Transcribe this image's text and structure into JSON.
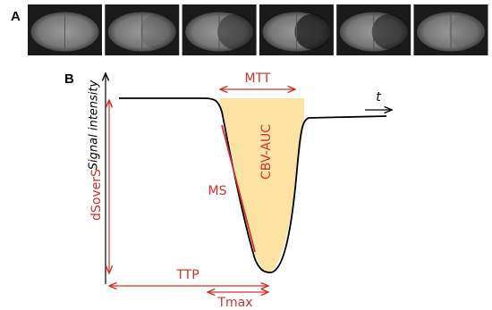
{
  "panel_a": {
    "label": "A"
  },
  "panel_b": {
    "label": "B",
    "y_axis_label": "Signal intensity",
    "time_label": "t",
    "mtt": "MTT",
    "area": "CBV-AUC",
    "slope": "MS",
    "drop": "dSoverS",
    "ttp": "TTP",
    "tmax": "Tmax"
  }
}
